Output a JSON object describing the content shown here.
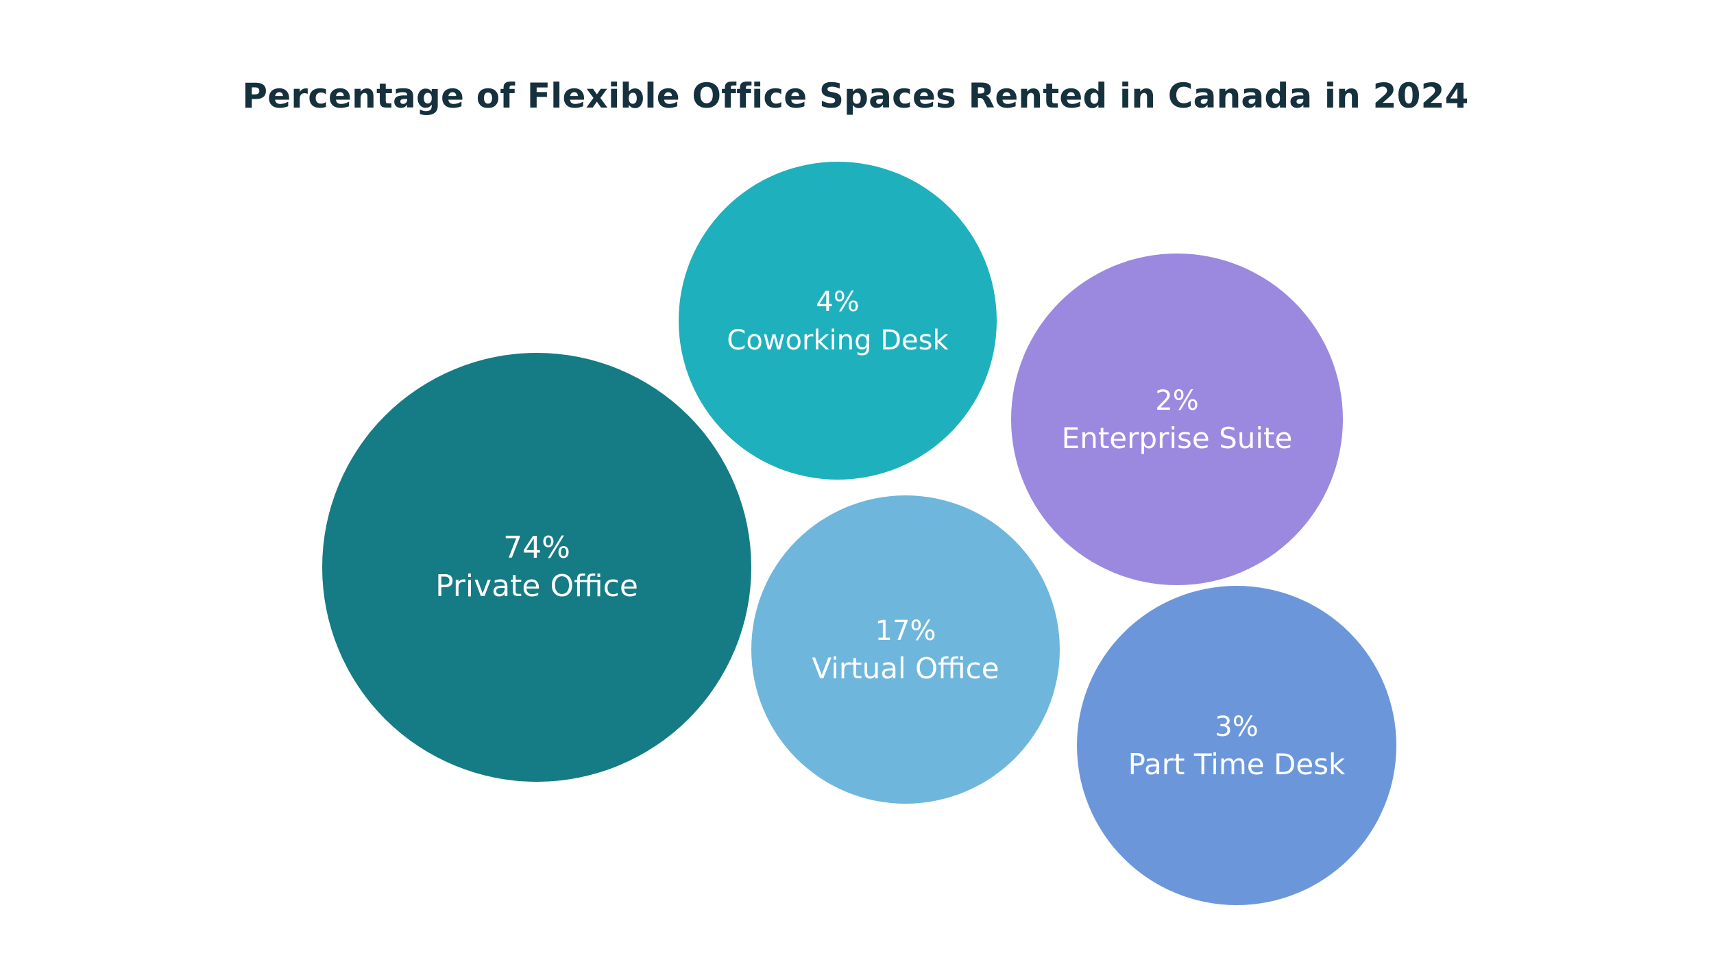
{
  "chart_data": {
    "type": "bubble",
    "title": "Percentage of Flexible Office Spaces Rented in Canada in 2024",
    "unit": "%",
    "items": [
      {
        "label": "Private Office",
        "value": 74,
        "value_label": "74%",
        "color": "#157b84"
      },
      {
        "label": "Coworking Desk",
        "value": 4,
        "value_label": "4%",
        "color": "#1fb0bd"
      },
      {
        "label": "Enterprise Suite",
        "value": 2,
        "value_label": "2%",
        "color": "#9b89e0"
      },
      {
        "label": "Virtual Office",
        "value": 17,
        "value_label": "17%",
        "color": "#6fb6dc"
      },
      {
        "label": "Part Time Desk",
        "value": 3,
        "value_label": "3%",
        "color": "#6b97da"
      }
    ]
  }
}
